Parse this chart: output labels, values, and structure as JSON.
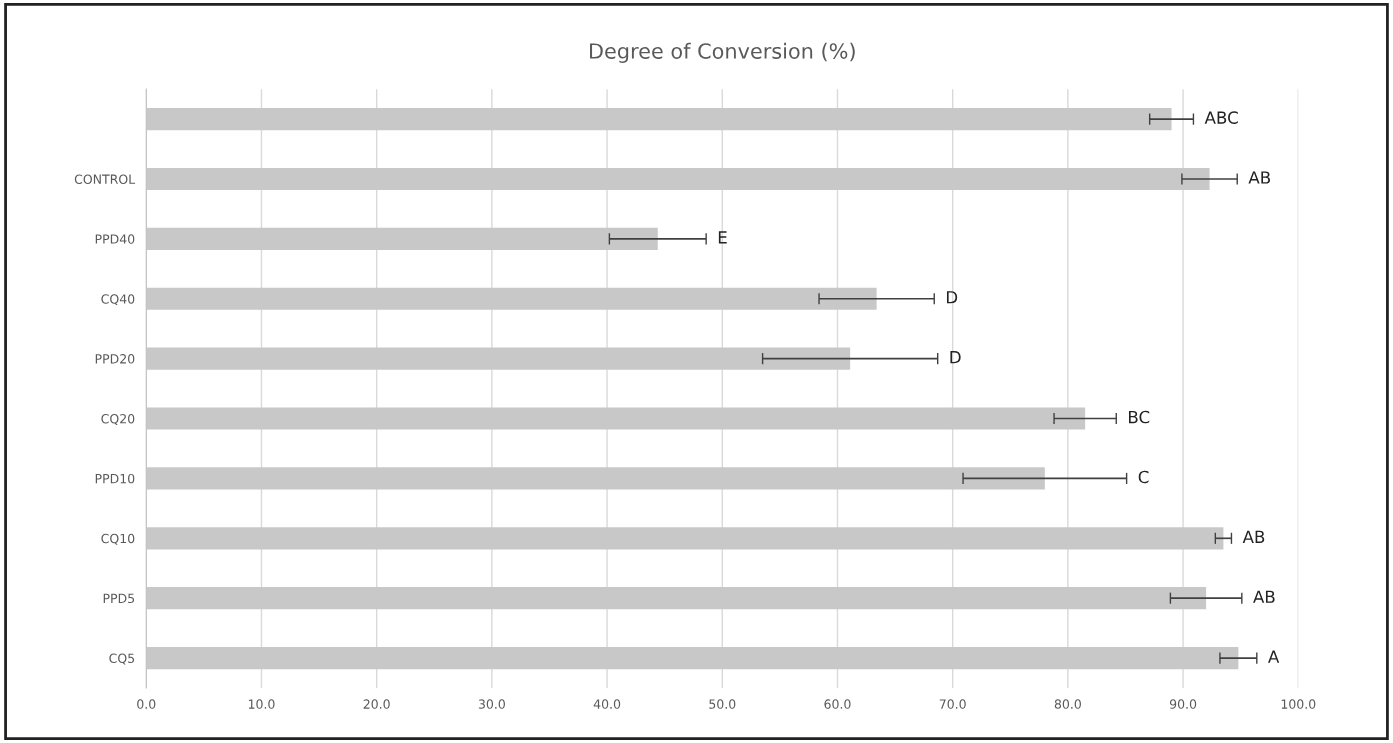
{
  "chart_data": {
    "type": "bar",
    "orientation": "horizontal",
    "title": "Degree of Conversion (%)",
    "categories": [
      null,
      "CONTROL",
      "PPD40",
      "CQ40",
      "PPD20",
      "CQ20",
      "PPD10",
      "CQ10",
      "PPD5",
      "CQ5"
    ],
    "values": [
      89.0,
      92.3,
      44.4,
      63.4,
      61.1,
      81.5,
      78.0,
      93.5,
      92.0,
      94.8
    ],
    "errors": [
      1.9,
      2.4,
      4.2,
      5.0,
      7.6,
      2.7,
      7.1,
      0.7,
      3.1,
      1.6
    ],
    "color": "#c8c8c8",
    "xlim": [
      0,
      100
    ],
    "xticks": [
      {
        "value": 0,
        "label": "0.0"
      },
      {
        "value": 10,
        "label": "10.0"
      },
      {
        "value": 20,
        "label": "20.0"
      },
      {
        "value": 30,
        "label": "30.0"
      },
      {
        "value": 40,
        "label": "40.0"
      },
      {
        "value": 50,
        "label": "50.0"
      },
      {
        "value": 60,
        "label": "60.0"
      },
      {
        "value": 70,
        "label": "70.0"
      },
      {
        "value": 80,
        "label": "80.0"
      },
      {
        "value": 90,
        "label": "90.0"
      },
      {
        "value": 100,
        "label": "100.0"
      }
    ],
    "grid": "x",
    "legend": false,
    "annotations": [
      {
        "text": "ABC",
        "x": 90.9
      },
      {
        "text": "AB",
        "x": 94.7,
        "y": "CONTROL"
      },
      {
        "text": "E",
        "x": 48.6,
        "y": "PPD40"
      },
      {
        "text": "D",
        "x": 68.4,
        "y": "CQ40"
      },
      {
        "text": "D",
        "x": 68.7,
        "y": "PPD20"
      },
      {
        "text": "BC",
        "x": 84.2,
        "y": "CQ20"
      },
      {
        "text": "C",
        "x": 85.1,
        "y": "PPD10"
      },
      {
        "text": "AB",
        "x": 94.2,
        "y": "CQ10"
      },
      {
        "text": "AB",
        "x": 95.1,
        "y": "PPD5"
      },
      {
        "text": "A",
        "x": 96.4,
        "y": "CQ5"
      }
    ]
  }
}
